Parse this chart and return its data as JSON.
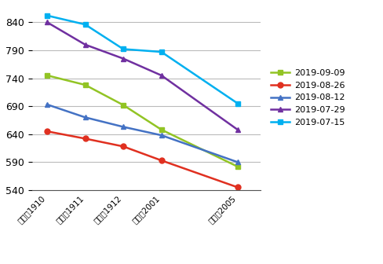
{
  "categories": [
    "铁矿石1910",
    "铁矿石1911",
    "铁矿石1912",
    "铁矿石2001",
    "铁矿石2005"
  ],
  "x_positions": [
    0,
    1,
    2,
    3,
    5
  ],
  "series": [
    {
      "label": "2019-09-09",
      "color": "#92c424",
      "marker": "s",
      "values": [
        745,
        728,
        692,
        648,
        582
      ]
    },
    {
      "label": "2019-08-26",
      "color": "#e03020",
      "marker": "o",
      "values": [
        645,
        632,
        618,
        593,
        545
      ]
    },
    {
      "label": "2019-08-12",
      "color": "#4472c4",
      "marker": "^",
      "values": [
        693,
        670,
        653,
        638,
        590
      ]
    },
    {
      "label": "2019-07-29",
      "color": "#7030a0",
      "marker": "^",
      "values": [
        840,
        800,
        775,
        745,
        648
      ]
    },
    {
      "label": "2019-07-15",
      "color": "#00b0f0",
      "marker": "s",
      "values": [
        852,
        836,
        792,
        787,
        695
      ]
    }
  ],
  "ylim": [
    540,
    870
  ],
  "yticks": [
    540,
    590,
    640,
    690,
    740,
    790,
    840
  ],
  "background_color": "#ffffff"
}
